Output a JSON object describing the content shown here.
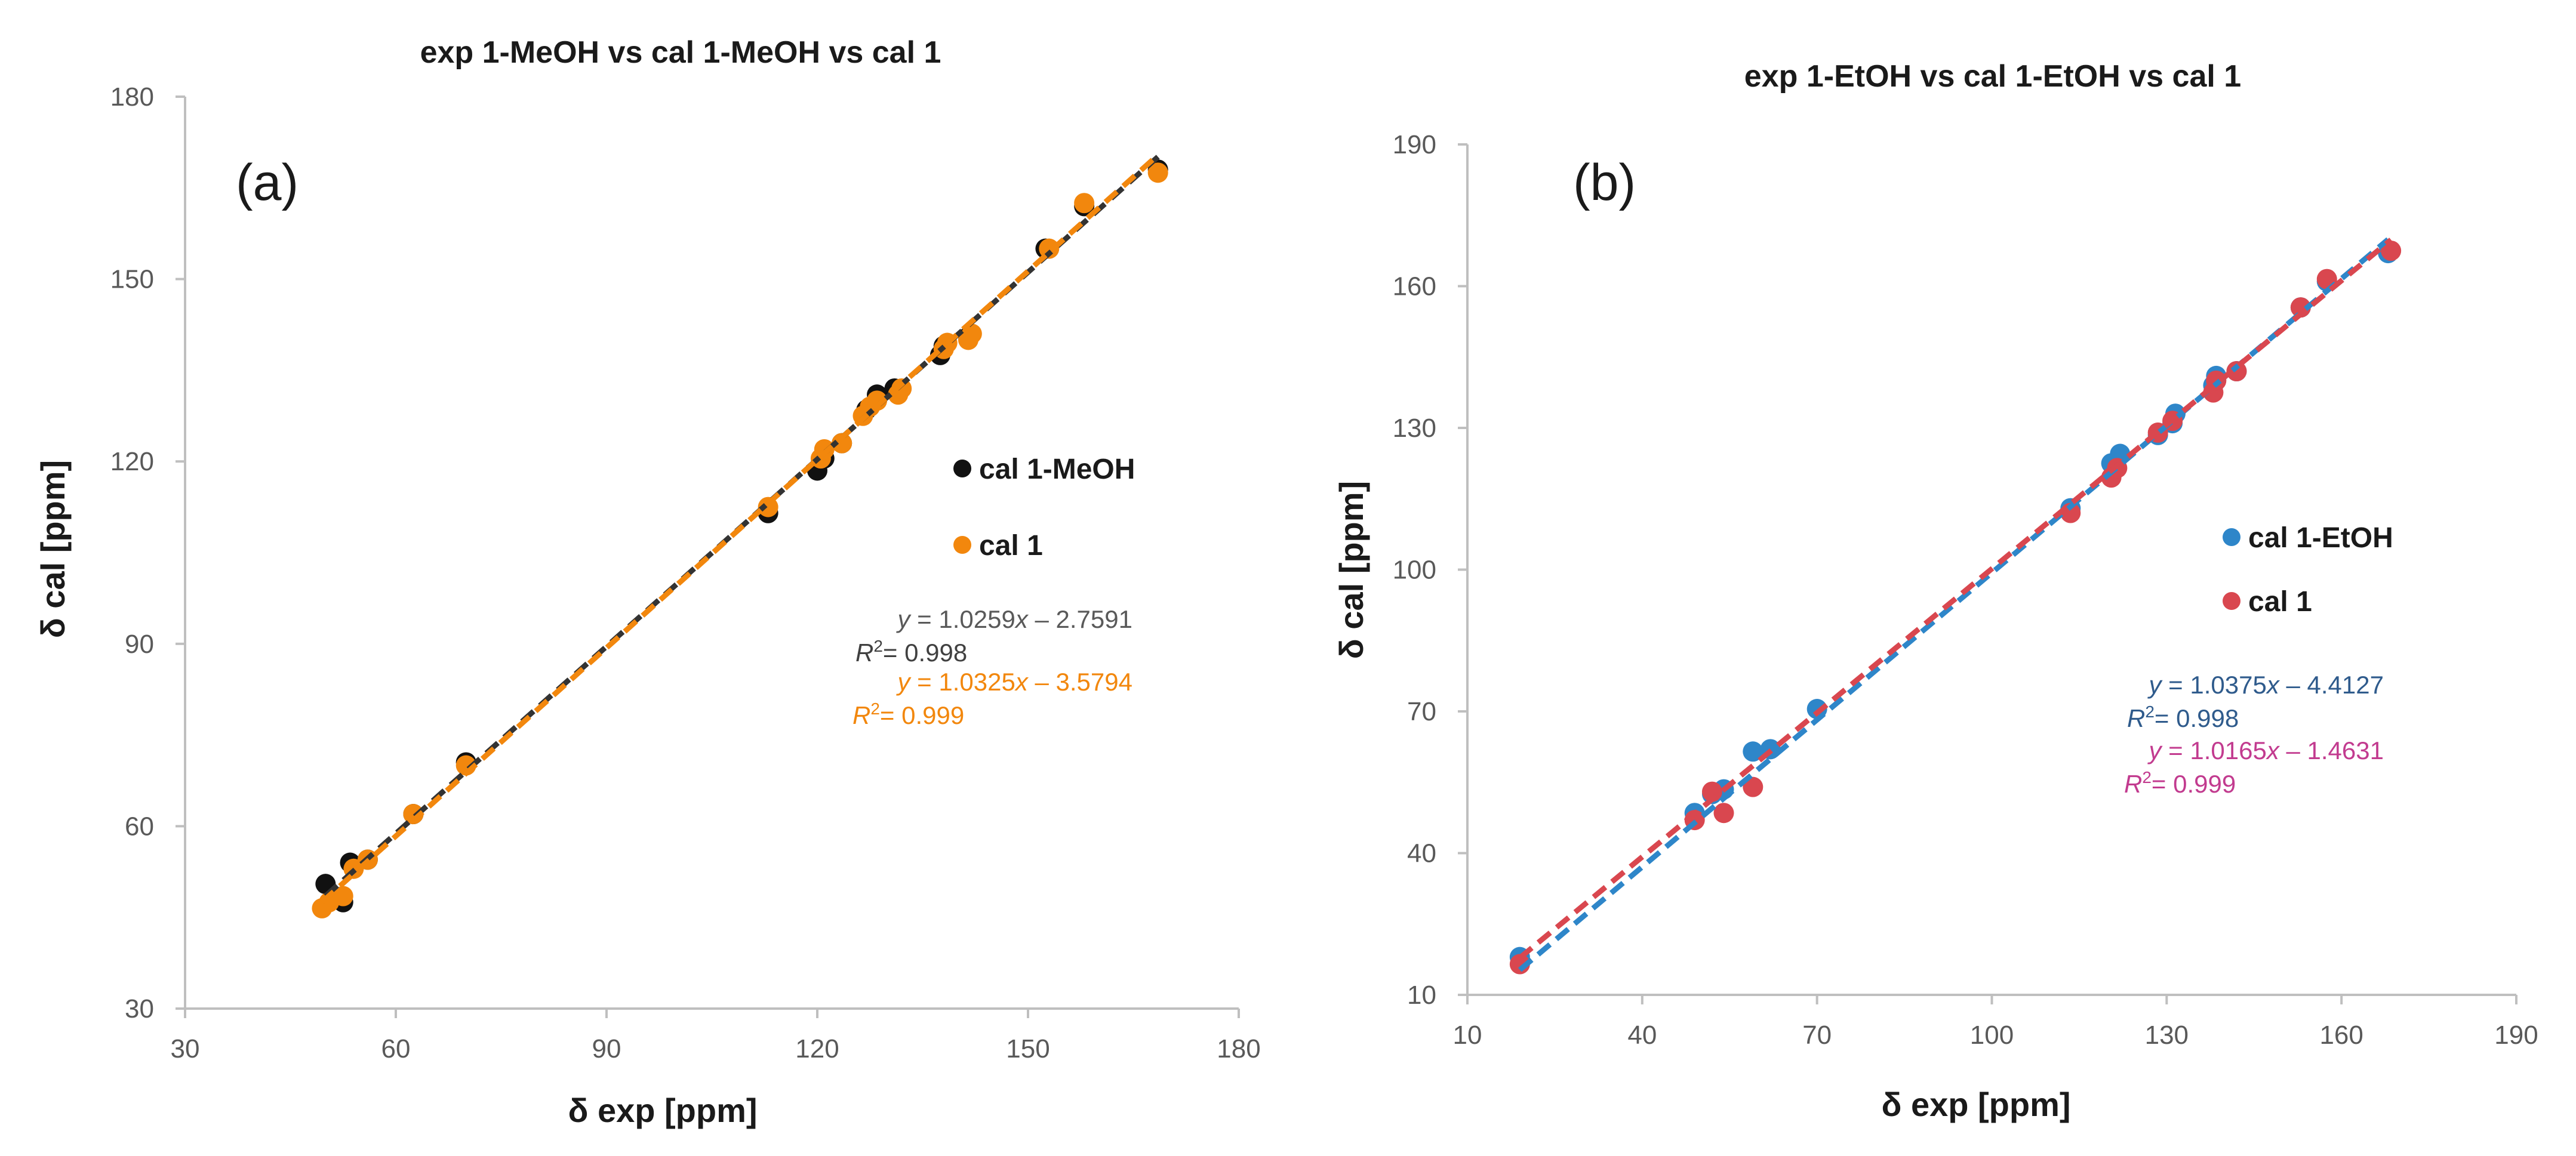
{
  "chart_data": [
    {
      "type": "scatter",
      "panel_label": "(a)",
      "title": "exp 1-MeOH vs cal 1-MeOH vs cal 1",
      "xlabel": "δ exp [ppm]",
      "ylabel": "δ cal [ppm]",
      "xlim": [
        30,
        180
      ],
      "ylim": [
        30,
        180
      ],
      "xticks": [
        30,
        60,
        90,
        120,
        150,
        180
      ],
      "yticks": [
        30,
        60,
        90,
        120,
        150,
        180
      ],
      "grid": false,
      "legend_position": "right",
      "series": [
        {
          "name": "cal 1-MeOH",
          "color": "#111111",
          "x": [
            50.0,
            52.5,
            53.5,
            56.0,
            62.5,
            70.0,
            113.0,
            120.0,
            121.0,
            123.5,
            127.0,
            128.5,
            131.0,
            137.5,
            138.0,
            141.5,
            152.5,
            158.0,
            168.5
          ],
          "y": [
            50.5,
            47.5,
            54.0,
            54.5,
            62.0,
            70.5,
            111.5,
            118.5,
            120.5,
            123.0,
            128.5,
            131.0,
            132.0,
            137.5,
            139.0,
            140.5,
            155.0,
            162.0,
            168.0
          ],
          "fit": {
            "slope": 1.0259,
            "intercept": -2.7591,
            "x_range": [
              50,
              168.5
            ],
            "color": "#333333",
            "dash": "long"
          },
          "equation": {
            "y_text": "y = 1.0259x – 2.7591",
            "r2_text": "= 0.998",
            "color_y": "#595959",
            "color_r2": "#404040"
          }
        },
        {
          "name": "cal 1",
          "color": "#f2870d",
          "x": [
            49.5,
            50.5,
            52.5,
            54.0,
            56.0,
            62.5,
            70.0,
            113.0,
            120.5,
            121.0,
            123.5,
            126.5,
            127.5,
            128.5,
            131.5,
            132.0,
            138.0,
            138.5,
            141.5,
            142.0,
            153.0,
            158.0,
            168.5
          ],
          "y": [
            46.5,
            47.5,
            48.5,
            53.0,
            54.5,
            62.0,
            70.0,
            112.5,
            120.5,
            122.0,
            123.0,
            127.5,
            129.0,
            130.0,
            131.0,
            132.0,
            138.5,
            139.5,
            140.0,
            141.0,
            155.0,
            162.5,
            167.5
          ],
          "fit": {
            "slope": 1.0325,
            "intercept": -3.5794,
            "x_range": [
              49.5,
              168.5
            ],
            "color": "#f2870d",
            "dash": "long"
          },
          "equation": {
            "y_text": "y = 1.0325x – 3.5794",
            "r2_text": "= 0.999",
            "color_y": "#f2870d",
            "color_r2": "#f2870d"
          }
        }
      ]
    },
    {
      "type": "scatter",
      "panel_label": "(b)",
      "title": "exp 1-EtOH vs cal 1-EtOH vs cal 1",
      "xlabel": "δ exp [ppm]",
      "ylabel": "δ cal [ppm]",
      "xlim": [
        10,
        190
      ],
      "ylim": [
        10,
        190
      ],
      "xticks": [
        10,
        40,
        70,
        100,
        130,
        160,
        190
      ],
      "yticks": [
        10,
        40,
        70,
        100,
        130,
        160,
        190
      ],
      "grid": false,
      "legend_position": "right",
      "series": [
        {
          "name": "cal 1-EtOH",
          "color": "#2e86c9",
          "x": [
            19.0,
            49.0,
            52.0,
            54.0,
            59.0,
            62.0,
            70.0,
            113.5,
            120.5,
            122.0,
            128.5,
            131.0,
            131.5,
            138.0,
            138.5,
            142.0,
            153.0,
            157.5,
            168.0
          ],
          "y": [
            18.0,
            48.5,
            52.5,
            53.5,
            61.5,
            62.0,
            70.5,
            113.0,
            122.5,
            124.5,
            128.5,
            131.0,
            133.0,
            139.0,
            141.0,
            142.0,
            155.5,
            161.0,
            167.0
          ],
          "fit": {
            "slope": 1.0375,
            "intercept": -4.4127,
            "x_range": [
              19,
              168
            ],
            "color": "#2e86c9",
            "dash": "long"
          },
          "equation": {
            "y_text": "y = 1.0375x – 4.4127",
            "r2_text": "= 0.998",
            "color_y": "#2f5b8c",
            "color_r2": "#2f5b8c"
          }
        },
        {
          "name": "cal 1",
          "color": "#d9474f",
          "x": [
            19.0,
            49.0,
            52.0,
            54.0,
            59.0,
            113.5,
            120.5,
            121.5,
            128.5,
            131.0,
            138.0,
            138.5,
            142.0,
            153.0,
            157.5,
            168.5
          ],
          "y": [
            16.5,
            47.0,
            53.0,
            48.5,
            54.0,
            112.0,
            119.5,
            121.5,
            129.0,
            131.5,
            137.5,
            140.0,
            142.0,
            155.5,
            161.5,
            167.5
          ],
          "fit": {
            "slope": 1.0165,
            "intercept": -1.4631,
            "x_range": [
              19,
              168.5
            ],
            "color": "#d9474f",
            "dash": "long"
          },
          "equation": {
            "y_text": "y = 1.0165x – 1.4631",
            "r2_text": "= 0.999",
            "color_y": "#c23b8f",
            "color_r2": "#c23b8f"
          }
        }
      ]
    }
  ]
}
